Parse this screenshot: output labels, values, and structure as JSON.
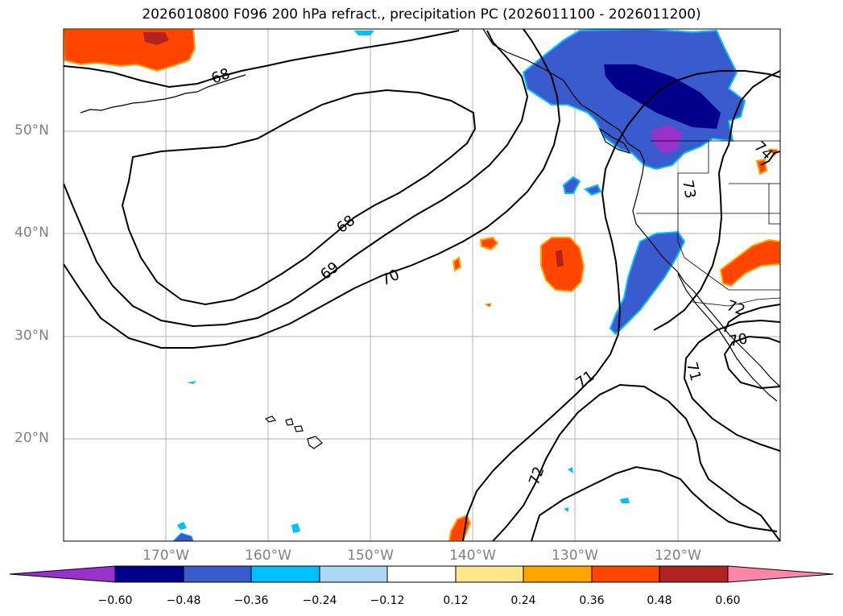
{
  "title": "2026010800 F096 200 hPa refract., precipitation PC (2026011100 - 2026011200)",
  "lon_labels": [
    "170°W",
    "160°W",
    "150°W",
    "140°W",
    "130°W",
    "120°W"
  ],
  "lat_labels": [
    "50°N",
    "40°N",
    "30°N",
    "20°N"
  ],
  "contour_labels": [
    "68",
    "68",
    "69",
    "70",
    "71",
    "72",
    "73",
    "72",
    "71",
    "74",
    "70"
  ],
  "colorbar": {
    "ticks": [
      "−0.60",
      "−0.48",
      "−0.36",
      "−0.24",
      "−0.12",
      "0.12",
      "0.24",
      "0.36",
      "0.48",
      "0.60"
    ],
    "colors": [
      "#9932cc",
      "#00008b",
      "#3a5bcd",
      "#00bfff",
      "#add8f5",
      "#ffffff",
      "#ffe68a",
      "#ffa500",
      "#ff4500",
      "#b22222",
      "#ff86a8"
    ]
  },
  "colors": {
    "grid": "#b0b0b0",
    "contour": "#000000",
    "axis_text": "#808080"
  }
}
